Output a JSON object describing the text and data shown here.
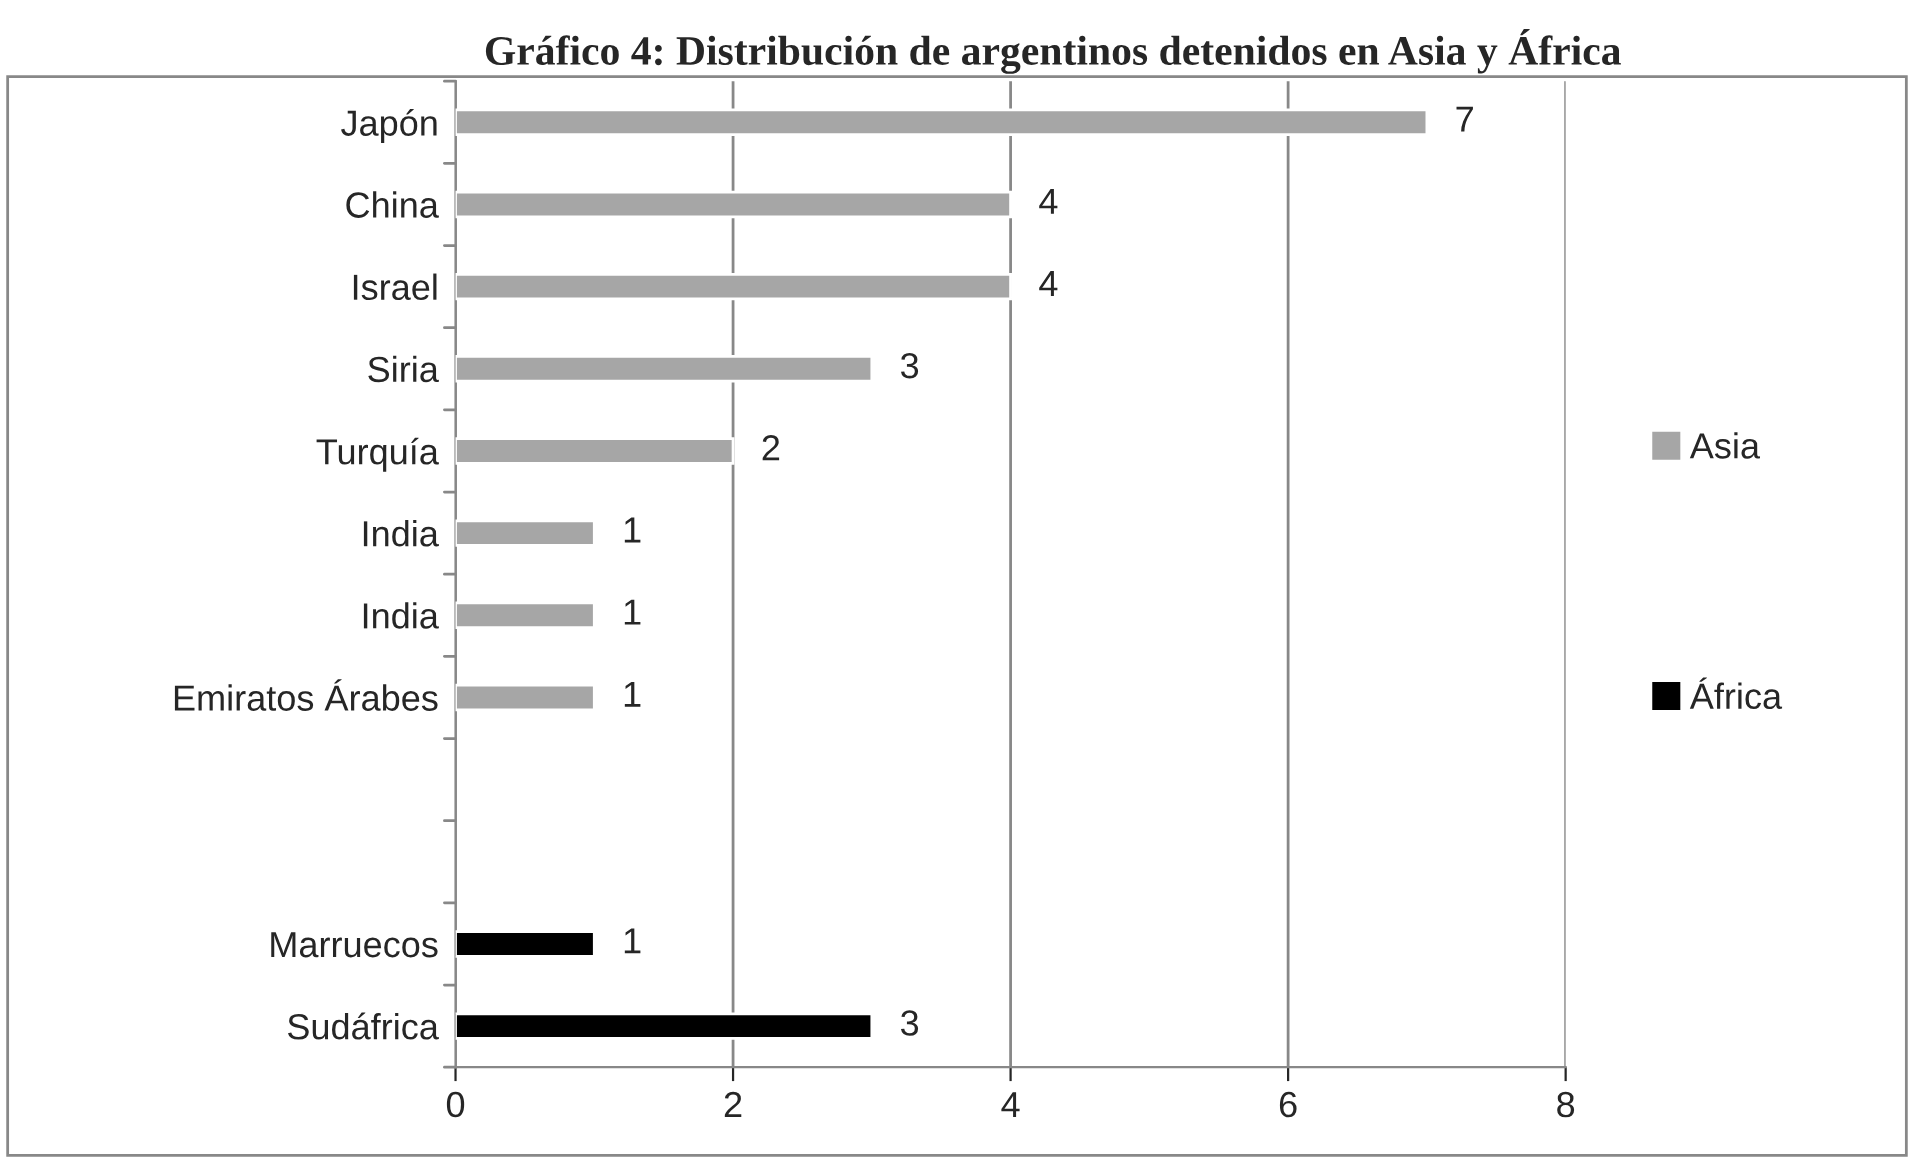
{
  "chart_data": {
    "type": "bar",
    "orientation": "horizontal",
    "title": "Gráfico 4: Distribución de argentinos detenidos en Asia y África",
    "categories": [
      "Japón",
      "China",
      "Israel",
      "Siria",
      "Turquía",
      "India",
      "India",
      "Emiratos Árabes",
      null,
      null,
      "Marruecos",
      "Sudáfrica"
    ],
    "series": [
      {
        "name": "Asia",
        "color": "#a6a6a6",
        "values": [
          7,
          4,
          4,
          3,
          2,
          1,
          1,
          1,
          null,
          null,
          null,
          null
        ]
      },
      {
        "name": "África",
        "color": "#000000",
        "values": [
          null,
          null,
          null,
          null,
          null,
          null,
          null,
          null,
          null,
          null,
          1,
          3
        ]
      }
    ],
    "xlim": [
      0,
      8
    ],
    "xticks": [
      0,
      2,
      4,
      6,
      8
    ],
    "grid": "x",
    "legend": "right",
    "data_labels": true
  }
}
